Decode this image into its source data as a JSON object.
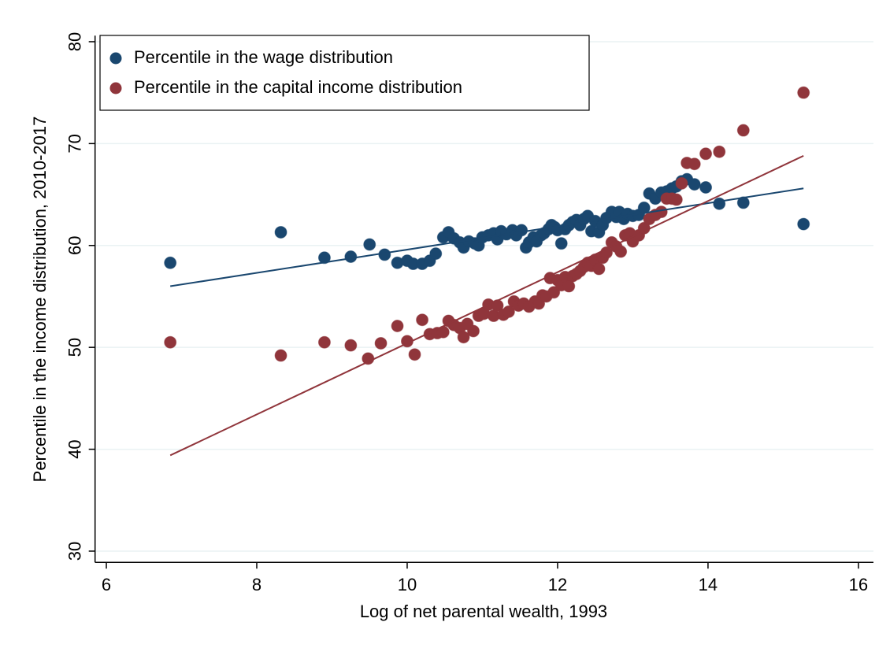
{
  "chart_data": {
    "type": "scatter",
    "xlabel": "Log of net parental wealth, 1993",
    "ylabel": "Percentile in the income distribution, 2010-2017",
    "xlim": [
      5.85,
      16.2
    ],
    "ylim": [
      28.9,
      80.6
    ],
    "xticks": [
      6,
      8,
      10,
      12,
      14,
      16
    ],
    "yticks": [
      30,
      40,
      50,
      60,
      70,
      80
    ],
    "grid": true,
    "legend": "top-left",
    "series": [
      {
        "name": "Percentile in the wage distribution",
        "color": "#1a476f",
        "x": [
          6.85,
          8.32,
          8.9,
          9.25,
          9.5,
          9.7,
          9.87,
          10.0,
          10.08,
          10.2,
          10.3,
          10.38,
          10.48,
          10.55,
          10.62,
          10.7,
          10.75,
          10.82,
          10.9,
          10.95,
          11.0,
          11.08,
          11.15,
          11.2,
          11.25,
          11.32,
          11.4,
          11.45,
          11.52,
          11.58,
          11.62,
          11.68,
          11.72,
          11.78,
          11.82,
          11.88,
          11.92,
          11.96,
          12.0,
          12.05,
          12.1,
          12.15,
          12.2,
          12.25,
          12.3,
          12.35,
          12.4,
          12.45,
          12.5,
          12.55,
          12.6,
          12.65,
          12.72,
          12.78,
          12.82,
          12.88,
          12.93,
          13.0,
          13.08,
          13.15,
          13.22,
          13.3,
          13.38,
          13.45,
          13.52,
          13.58,
          13.65,
          13.72,
          13.82,
          13.97,
          14.15,
          14.47,
          15.27
        ],
        "values": [
          58.3,
          61.3,
          58.8,
          58.9,
          60.1,
          59.1,
          58.3,
          58.5,
          58.2,
          58.2,
          58.5,
          59.2,
          60.8,
          61.3,
          60.7,
          60.3,
          59.8,
          60.4,
          60.2,
          60.0,
          60.8,
          61.0,
          61.2,
          60.6,
          61.4,
          61.1,
          61.5,
          61.0,
          61.5,
          59.8,
          60.3,
          60.8,
          60.4,
          61.0,
          61.2,
          61.6,
          62.0,
          61.8,
          61.5,
          60.2,
          61.6,
          62.0,
          62.3,
          62.5,
          62.0,
          62.6,
          62.9,
          61.4,
          62.4,
          61.3,
          62.0,
          62.7,
          63.3,
          62.8,
          63.3,
          62.6,
          63.1,
          62.9,
          63.0,
          63.7,
          65.1,
          64.6,
          65.2,
          65.3,
          65.6,
          65.8,
          66.3,
          66.5,
          66.0,
          65.7,
          64.1,
          64.2,
          62.1
        ],
        "fit": {
          "x": [
            6.85,
            15.27
          ],
          "y": [
            56.0,
            65.6
          ]
        }
      },
      {
        "name": "Percentile in the capital income distribution",
        "color": "#90353b",
        "x": [
          6.85,
          8.32,
          8.9,
          9.25,
          9.48,
          9.65,
          9.87,
          10.0,
          10.1,
          10.2,
          10.3,
          10.4,
          10.48,
          10.55,
          10.62,
          10.7,
          10.75,
          10.8,
          10.88,
          10.95,
          11.02,
          11.08,
          11.15,
          11.2,
          11.28,
          11.35,
          11.42,
          11.48,
          11.55,
          11.62,
          11.7,
          11.75,
          11.8,
          11.85,
          11.9,
          11.95,
          12.0,
          12.05,
          12.1,
          12.15,
          12.2,
          12.25,
          12.3,
          12.35,
          12.4,
          12.45,
          12.5,
          12.55,
          12.6,
          12.65,
          12.72,
          12.78,
          12.84,
          12.9,
          12.96,
          13.0,
          13.08,
          13.15,
          13.22,
          13.3,
          13.38,
          13.45,
          13.52,
          13.58,
          13.65,
          13.72,
          13.82,
          13.97,
          14.15,
          14.47,
          15.27
        ],
        "values": [
          50.5,
          49.2,
          50.5,
          50.2,
          48.9,
          50.4,
          52.1,
          50.6,
          49.3,
          52.7,
          51.3,
          51.4,
          51.5,
          52.6,
          52.2,
          51.9,
          51.0,
          52.3,
          51.6,
          53.1,
          53.3,
          54.2,
          53.1,
          54.1,
          53.2,
          53.5,
          54.5,
          54.1,
          54.3,
          54.0,
          54.5,
          54.3,
          55.1,
          55.0,
          56.8,
          55.4,
          56.6,
          56.1,
          56.9,
          56.0,
          57.0,
          57.2,
          57.5,
          57.9,
          58.3,
          58.0,
          58.6,
          57.7,
          58.8,
          59.3,
          60.3,
          59.9,
          59.4,
          61.0,
          61.2,
          60.4,
          61.0,
          61.7,
          62.6,
          63.0,
          63.3,
          64.6,
          64.6,
          64.5,
          66.1,
          68.1,
          68.0,
          69.0,
          69.2,
          71.3,
          75.0
        ],
        "fit": {
          "x": [
            6.85,
            15.27
          ],
          "y": [
            39.4,
            68.8
          ]
        }
      }
    ]
  }
}
